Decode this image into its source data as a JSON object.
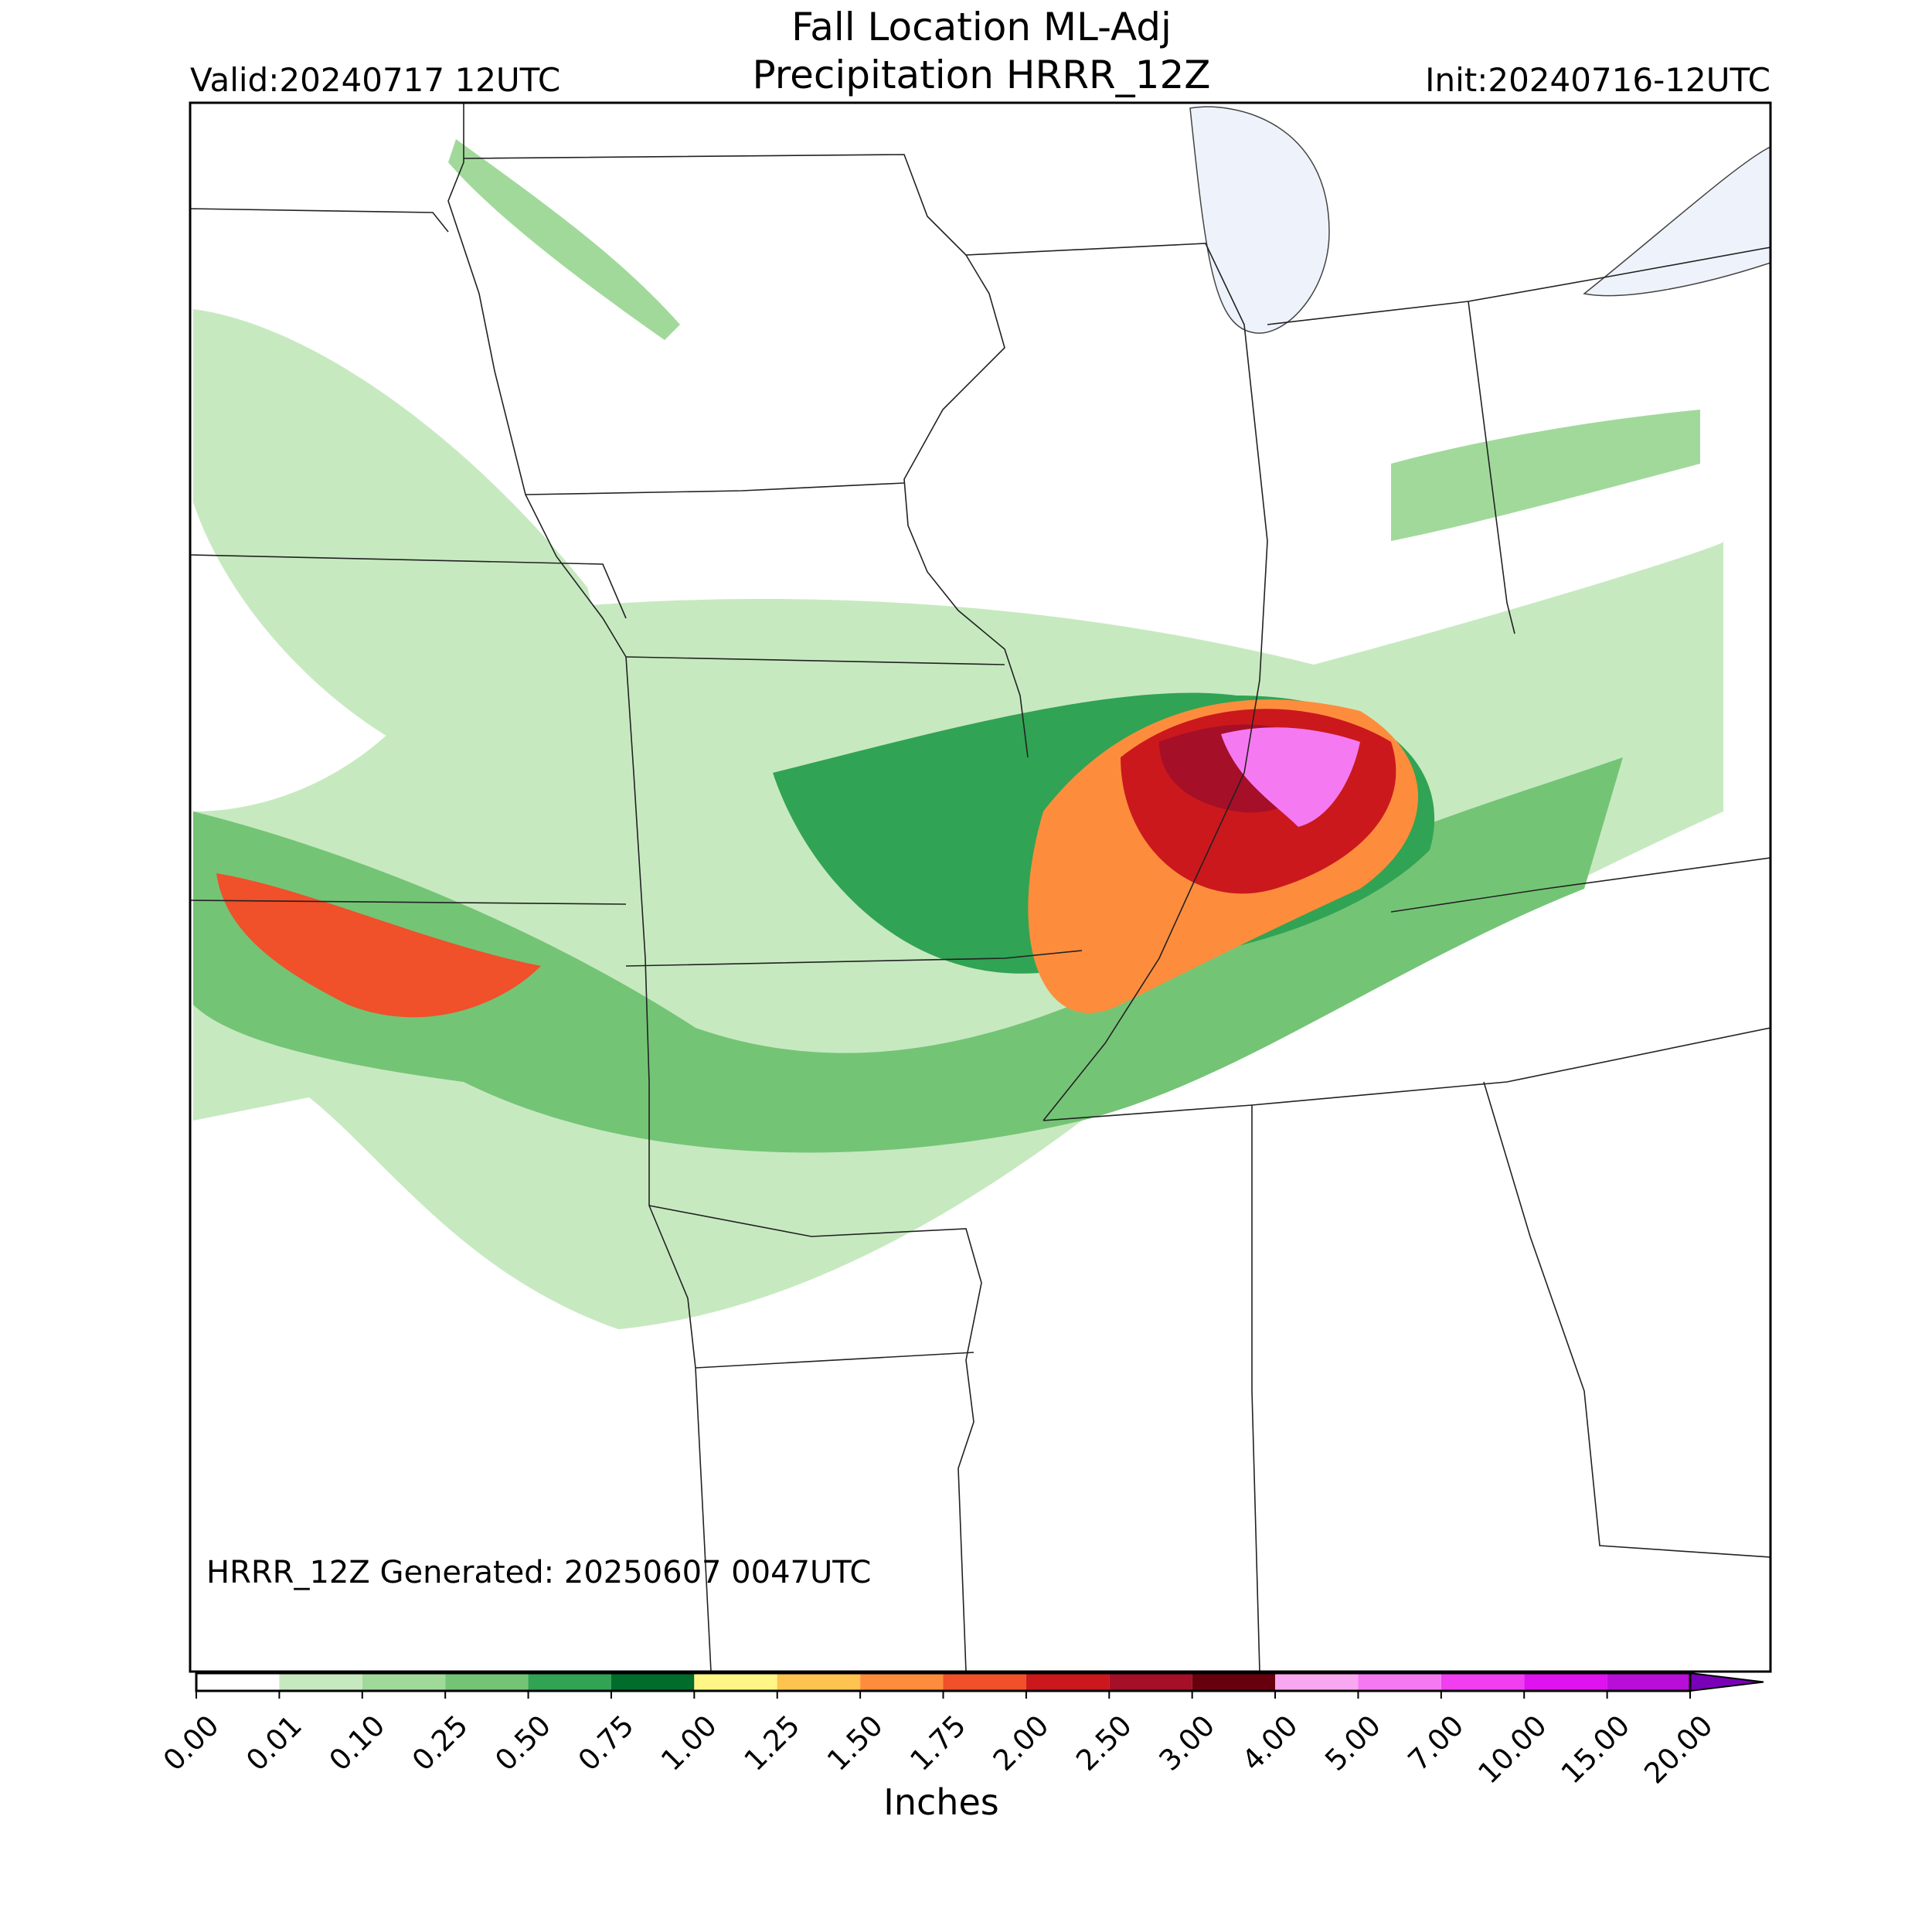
{
  "map": {
    "title": "Fall Location ML-Adj",
    "subtitle": "Precipitation HRRR_12Z",
    "valid": "Valid:20240717 12UTC",
    "init": "Init:20240716-12UTC",
    "generated": "HRRR_12Z Generated: 20250607 0047UTC",
    "colorbar": {
      "label": "Inches",
      "ticks": [
        {
          "value": 0,
          "label": "0.00"
        },
        {
          "value": 0.01,
          "label": "0.01"
        },
        {
          "value": 0.1,
          "label": "0.10"
        },
        {
          "value": 0.25,
          "label": "0.25"
        },
        {
          "value": 0.5,
          "label": "0.50"
        },
        {
          "value": 0.75,
          "label": "0.75"
        },
        {
          "value": 1,
          "label": "1.00"
        },
        {
          "value": 1.25,
          "label": "1.25"
        },
        {
          "value": 1.5,
          "label": "1.50"
        },
        {
          "value": 1.75,
          "label": "1.75"
        },
        {
          "value": 2,
          "label": "2.00"
        },
        {
          "value": 2.5,
          "label": "2.50"
        },
        {
          "value": 3,
          "label": "3.00"
        },
        {
          "value": 4,
          "label": "4.00"
        },
        {
          "value": 5,
          "label": "5.00"
        },
        {
          "value": 7,
          "label": "7.00"
        },
        {
          "value": 10,
          "label": "10.00"
        },
        {
          "value": 15,
          "label": "15.00"
        },
        {
          "value": 20,
          "label": "20.00"
        }
      ],
      "colors": [
        "#ffffff",
        "#c7e9c0",
        "#a1d99b",
        "#74c476",
        "#31a354",
        "#006d2c",
        "#fff685",
        "#fec44f",
        "#fd8d3c",
        "#f0502a",
        "#cb181d",
        "#a50f28",
        "#67000d",
        "#f7a8f0",
        "#f57af2",
        "#f03ef0",
        "#df12f0",
        "#b80ed8"
      ],
      "extend_color": "#7a00b8"
    }
  }
}
